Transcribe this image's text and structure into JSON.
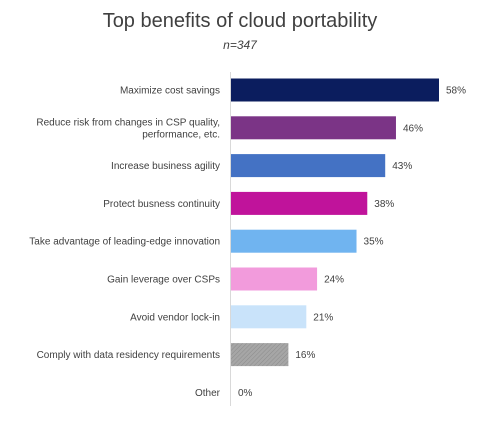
{
  "chart_data": {
    "type": "bar",
    "orientation": "horizontal",
    "title": "Top benefits of cloud portability",
    "subtitle": "n=347",
    "categories": [
      [
        "Maximize cost savings"
      ],
      [
        "Reduce risk from changes in CSP quality,",
        "performance, etc."
      ],
      [
        "Increase business agility"
      ],
      [
        "Protect busness continuity"
      ],
      [
        "Take advantage of leading-edge innovation"
      ],
      [
        "Gain leverage over CSPs"
      ],
      [
        "Avoid vendor lock-in"
      ],
      [
        "Comply with data residency requirements"
      ],
      [
        "Other"
      ]
    ],
    "values": [
      58,
      46,
      43,
      38,
      35,
      24,
      21,
      16,
      0
    ],
    "value_labels": [
      "58%",
      "46%",
      "43%",
      "38%",
      "35%",
      "24%",
      "21%",
      "16%",
      "0%"
    ],
    "colors": [
      "#0b1d5e",
      "#7b3486",
      "#4472c4",
      "#c0139b",
      "#70b4f0",
      "#f29bdc",
      "#c9e3fa",
      "#a6a6a6",
      "#a6a6a6"
    ],
    "xlim": [
      0,
      62
    ],
    "grid": false,
    "legend": "none"
  }
}
